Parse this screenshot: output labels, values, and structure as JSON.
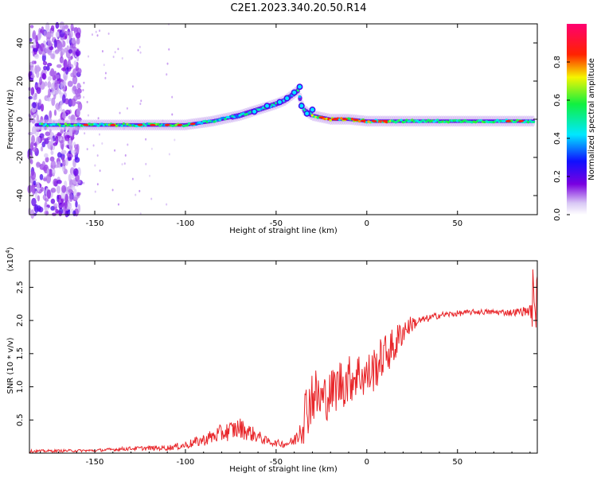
{
  "title": "C2E1.2023.340.20.50.R14",
  "colors": {
    "snr_line": "#e8262a",
    "axis": "#000000"
  },
  "chart_data": [
    {
      "type": "heatmap",
      "xlabel": "Height of straight line (km)",
      "ylabel": "Frequency (Hz)",
      "xlim": [
        -186,
        94
      ],
      "ylim": [
        -50,
        50
      ],
      "xticks": [
        -150,
        -100,
        -50,
        0,
        50
      ],
      "yticks": [
        -40,
        -20,
        0,
        20,
        40
      ],
      "xtick_labels": [
        "-150",
        "-100",
        "-50",
        "0",
        "50"
      ],
      "ytick_labels": [
        "-40",
        "-20",
        "0",
        "20",
        "40"
      ],
      "colorbar": {
        "label": "Normalized spectral amplitude",
        "range": [
          0,
          1
        ],
        "ticks": [
          0.0,
          0.2,
          0.4,
          0.6,
          0.8
        ],
        "tick_labels": [
          "0.0",
          "0.2",
          "0.4",
          "0.6",
          "0.8"
        ],
        "colormap": "rainbow (white-violet-blue-cyan-green-yellow-red-magenta)"
      },
      "ridge": {
        "x": [
          -180,
          -160,
          -140,
          -120,
          -100,
          -85,
          -70,
          -60,
          -50,
          -45,
          -38,
          -35,
          -30,
          -20,
          -10,
          0,
          10,
          30,
          50,
          70,
          90
        ],
        "y": [
          -3,
          -3,
          -3,
          -3,
          -3,
          -1,
          2,
          5,
          8,
          10,
          15,
          5,
          2,
          0,
          0,
          -1,
          -1,
          -1,
          -1,
          -1,
          -1
        ]
      }
    },
    {
      "type": "line",
      "xlabel": "Height of straight line (km)",
      "ylabel": "SNR (10 * v/v)",
      "multiplier_label": "(x10",
      "multiplier_exp": "4",
      "multiplier_close": ")",
      "xlim": [
        -186,
        94
      ],
      "ylim": [
        0,
        2.9
      ],
      "xticks": [
        -150,
        -100,
        -50,
        0,
        50
      ],
      "yticks": [
        0.5,
        1.0,
        1.5,
        2.0,
        2.5
      ],
      "xtick_labels": [
        "-150",
        "-100",
        "-50",
        "0",
        "50"
      ],
      "ytick_labels": [
        "0.5",
        "1.0",
        "1.5",
        "2.0",
        "2.5"
      ],
      "trend": {
        "x": [
          -186,
          -150,
          -130,
          -110,
          -100,
          -90,
          -80,
          -70,
          -60,
          -55,
          -50,
          -45,
          -40,
          -34,
          -30,
          -25,
          -20,
          -15,
          -10,
          -5,
          0,
          5,
          10,
          15,
          20,
          25,
          30,
          40,
          60,
          80,
          90,
          94
        ],
        "mean": [
          0.03,
          0.04,
          0.07,
          0.08,
          0.12,
          0.2,
          0.3,
          0.38,
          0.25,
          0.18,
          0.15,
          0.14,
          0.18,
          0.6,
          0.9,
          0.8,
          0.9,
          1.05,
          1.1,
          1.2,
          1.15,
          1.3,
          1.5,
          1.6,
          1.85,
          1.95,
          2.0,
          2.08,
          2.13,
          2.12,
          2.15,
          2.1
        ],
        "noise": [
          0.02,
          0.02,
          0.03,
          0.04,
          0.06,
          0.09,
          0.14,
          0.16,
          0.1,
          0.06,
          0.05,
          0.06,
          0.08,
          0.45,
          0.45,
          0.4,
          0.35,
          0.4,
          0.38,
          0.35,
          0.35,
          0.35,
          0.3,
          0.3,
          0.2,
          0.12,
          0.06,
          0.05,
          0.04,
          0.05,
          0.08,
          0.4
        ]
      }
    }
  ]
}
